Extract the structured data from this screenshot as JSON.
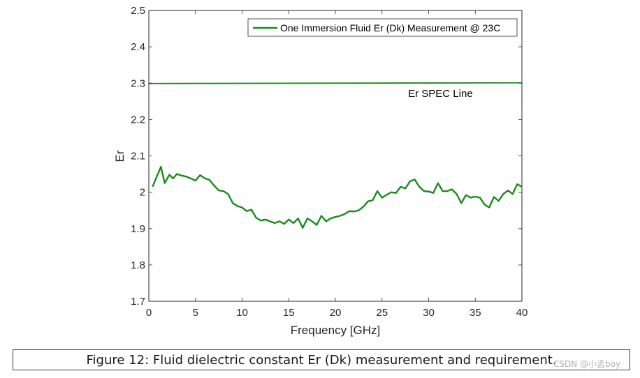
{
  "chart_data": {
    "type": "line",
    "xlabel": "Frequency [GHz]",
    "ylabel": "Er",
    "xlim": [
      0,
      40
    ],
    "ylim": [
      1.7,
      2.5
    ],
    "x_ticks": [
      "0",
      "5",
      "10",
      "15",
      "20",
      "25",
      "30",
      "35",
      "40"
    ],
    "y_ticks": [
      "1.7",
      "1.8",
      "1.9",
      "2",
      "2.1",
      "2.2",
      "2.3",
      "2.4",
      "2.5"
    ],
    "grid": false,
    "legend": {
      "placement": "top-right",
      "entries": [
        "One Immersion Fluid Er (Dk) Measurement @ 23C"
      ]
    },
    "annotations": [
      {
        "text": "Er SPEC Line",
        "x": 27.8,
        "y": 2.262
      }
    ],
    "series": [
      {
        "name": "One Immersion Fluid Er (Dk) Measurement @ 23C",
        "color": "#1b8a1b",
        "x": [
          0.4,
          0.8,
          1.3,
          1.7,
          2.2,
          2.6,
          3.0,
          3.5,
          4.0,
          4.5,
          5.0,
          5.5,
          6.0,
          6.5,
          7.0,
          7.5,
          8.0,
          8.5,
          9.0,
          9.5,
          10.0,
          10.5,
          11.0,
          11.5,
          12.0,
          12.5,
          13.0,
          13.5,
          14.0,
          14.5,
          15.0,
          15.5,
          16.0,
          16.5,
          17.0,
          17.5,
          18.0,
          18.5,
          19.0,
          19.5,
          20.0,
          20.5,
          21.0,
          21.5,
          22.0,
          22.5,
          23.0,
          23.5,
          24.0,
          24.5,
          25.0,
          25.5,
          26.0,
          26.5,
          27.0,
          27.5,
          28.0,
          28.5,
          29.0,
          29.5,
          30.0,
          30.5,
          31.0,
          31.5,
          32.0,
          32.5,
          33.0,
          33.5,
          34.0,
          34.5,
          35.0,
          35.5,
          36.0,
          36.5,
          37.0,
          37.5,
          38.0,
          38.5,
          39.0,
          39.5,
          40.0
        ],
        "y": [
          2.015,
          2.04,
          2.07,
          2.025,
          2.048,
          2.038,
          2.05,
          2.046,
          2.043,
          2.038,
          2.032,
          2.047,
          2.038,
          2.034,
          2.018,
          2.005,
          2.003,
          1.995,
          1.97,
          1.962,
          1.958,
          1.948,
          1.952,
          1.93,
          1.922,
          1.925,
          1.92,
          1.915,
          1.92,
          1.913,
          1.925,
          1.915,
          1.928,
          1.902,
          1.928,
          1.92,
          1.91,
          1.935,
          1.92,
          1.928,
          1.932,
          1.935,
          1.94,
          1.948,
          1.947,
          1.95,
          1.96,
          1.975,
          1.978,
          2.003,
          1.985,
          1.993,
          2.0,
          1.998,
          2.015,
          2.01,
          2.03,
          2.035,
          2.015,
          2.003,
          2.002,
          1.998,
          2.025,
          2.003,
          2.003,
          2.008,
          1.995,
          1.97,
          1.992,
          1.985,
          1.988,
          1.985,
          1.966,
          1.958,
          1.987,
          1.976,
          1.995,
          2.005,
          1.995,
          2.022,
          2.015
        ],
        "x2": [],
        "y2": []
      },
      {
        "name": "",
        "color": "#1b8a1b",
        "x": [
          0,
          40
        ],
        "y": [
          2.299,
          2.301
        ]
      }
    ]
  },
  "caption": "Figure 12: Fluid dielectric constant Er (Dk) measurement and requirement.",
  "watermark": "CSDN @小孟boy"
}
